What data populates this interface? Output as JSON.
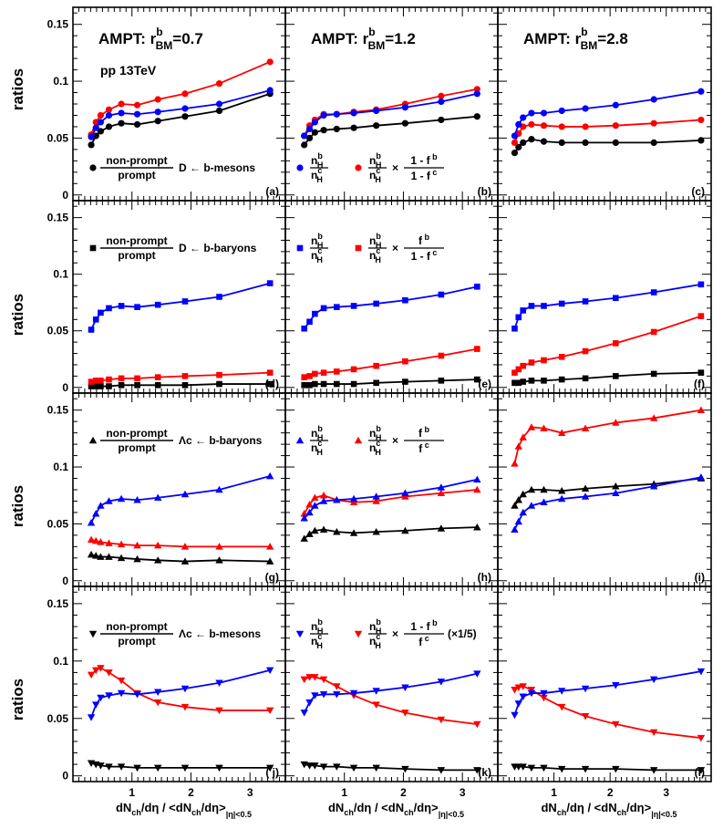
{
  "chart_data": {
    "type": "line",
    "ylabel": "ratios",
    "xlabel": {
      "main": "dN",
      "sub1": "ch",
      "mid": "/dη / <dN",
      "sub2": "ch",
      "end": "/dη>",
      "sub3": "|η|<0.5"
    },
    "ylim": [
      -0.005,
      0.165
    ],
    "yticks": [
      0,
      0.05,
      0.1,
      0.15
    ],
    "ytick_labels": [
      "0",
      "0.05",
      "0.1",
      "0.15"
    ],
    "xtick_labels": [
      "1",
      "2",
      "3"
    ],
    "columns": [
      {
        "xlim": [
          0.0,
          3.6
        ],
        "title": {
          "pre": "AMPT: r",
          "sup": "b",
          "sub": "BM",
          "post": "=0.7"
        }
      },
      {
        "xlim": [
          0.0,
          3.6
        ],
        "title": {
          "pre": "AMPT: r",
          "sup": "b",
          "sub": "BM",
          "post": "=1.2"
        }
      },
      {
        "xlim": [
          0.0,
          3.8
        ],
        "title": {
          "pre": "AMPT: r",
          "sup": "b",
          "sub": "BM",
          "post": "=2.8"
        }
      }
    ],
    "subtitle": "pp 13TeV",
    "legends": [
      {
        "black": {
          "num": "non-prompt",
          "den": "prompt",
          "text": "D ← b-mesons"
        },
        "colored": {
          "blue": {
            "nb": "n",
            "nsup": "b",
            "nsub": "H",
            "db": "n",
            "dsup": "c",
            "dsub": "H"
          },
          "red_factor": {
            "num": "1 - f",
            "numsup": "b",
            "den": "1 - f",
            "densup": "c"
          }
        }
      },
      {
        "black": {
          "num": "non-prompt",
          "den": "prompt",
          "text": "D ← b-baryons"
        },
        "colored": {
          "red_factor": {
            "num": "f",
            "numsup": "b",
            "den": "1 - f",
            "densup": "c"
          }
        }
      },
      {
        "black": {
          "num": "non-prompt",
          "den": "prompt",
          "text": "Λc ← b-baryons"
        },
        "colored": {
          "red_factor": {
            "num": "f",
            "numsup": "b",
            "den": "f",
            "densup": "c"
          }
        }
      },
      {
        "black": {
          "num": "non-prompt",
          "den": "prompt",
          "text": "Λc ← b-mesons"
        },
        "colored": {
          "red_factor": {
            "num": "1 - f",
            "numsup": "b",
            "den": "f",
            "densup": "c"
          },
          "scale_note": "(×1/5)"
        }
      }
    ],
    "panel_labels": [
      "(a)",
      "(b)",
      "(c)",
      "(d)",
      "(e)",
      "(f)",
      "(g)",
      "(h)",
      "(i)",
      "( j)",
      "(k)",
      "(l)"
    ],
    "marker_per_row": [
      "circle",
      "square",
      "triangle-up",
      "triangle-down"
    ],
    "colors": {
      "black": "#000000",
      "blue": "#0000ff",
      "red": "#ff0000"
    },
    "x_values": [
      [
        0.31,
        0.39,
        0.47,
        0.61,
        0.82,
        1.09,
        1.44,
        1.9,
        2.48,
        3.34
      ],
      [
        0.32,
        0.41,
        0.5,
        0.65,
        0.87,
        1.16,
        1.54,
        2.03,
        2.64,
        3.25
      ],
      [
        0.3,
        0.37,
        0.45,
        0.6,
        0.82,
        1.14,
        1.56,
        2.1,
        2.78,
        3.62
      ]
    ],
    "panels": [
      [
        {
          "black": [
            0.044,
            0.052,
            0.056,
            0.06,
            0.063,
            0.062,
            0.065,
            0.069,
            0.074,
            0.089
          ],
          "blue": [
            0.051,
            0.059,
            0.064,
            0.07,
            0.072,
            0.071,
            0.073,
            0.076,
            0.08,
            0.092
          ],
          "red": [
            0.053,
            0.064,
            0.07,
            0.075,
            0.08,
            0.079,
            0.084,
            0.089,
            0.098,
            0.117
          ]
        },
        {
          "black": [
            0.044,
            0.05,
            0.055,
            0.057,
            0.058,
            0.059,
            0.061,
            0.063,
            0.066,
            0.069
          ],
          "blue": [
            0.052,
            0.058,
            0.064,
            0.07,
            0.071,
            0.072,
            0.074,
            0.077,
            0.082,
            0.089
          ],
          "red": [
            0.052,
            0.061,
            0.066,
            0.071,
            0.071,
            0.073,
            0.075,
            0.08,
            0.087,
            0.093
          ]
        },
        {
          "black": [
            0.037,
            0.042,
            0.046,
            0.049,
            0.047,
            0.046,
            0.046,
            0.046,
            0.046,
            0.048
          ],
          "blue": [
            0.052,
            0.062,
            0.068,
            0.072,
            0.072,
            0.074,
            0.076,
            0.079,
            0.084,
            0.091
          ],
          "red": [
            0.046,
            0.054,
            0.06,
            0.062,
            0.061,
            0.06,
            0.06,
            0.061,
            0.063,
            0.066
          ]
        }
      ],
      [
        {
          "black": [
            0.001,
            0.001,
            0.001,
            0.001,
            0.002,
            0.002,
            0.002,
            0.002,
            0.003,
            0.003
          ],
          "blue": [
            0.051,
            0.06,
            0.066,
            0.07,
            0.072,
            0.071,
            0.073,
            0.076,
            0.08,
            0.092
          ],
          "red": [
            0.005,
            0.006,
            0.006,
            0.007,
            0.008,
            0.008,
            0.009,
            0.01,
            0.011,
            0.013
          ]
        },
        {
          "black": [
            0.002,
            0.002,
            0.003,
            0.003,
            0.003,
            0.003,
            0.004,
            0.005,
            0.006,
            0.007
          ],
          "blue": [
            0.052,
            0.058,
            0.065,
            0.07,
            0.071,
            0.072,
            0.074,
            0.077,
            0.082,
            0.089
          ],
          "red": [
            0.009,
            0.01,
            0.012,
            0.013,
            0.014,
            0.016,
            0.019,
            0.023,
            0.028,
            0.034
          ]
        },
        {
          "black": [
            0.004,
            0.004,
            0.005,
            0.006,
            0.006,
            0.007,
            0.008,
            0.01,
            0.012,
            0.013
          ],
          "blue": [
            0.052,
            0.062,
            0.068,
            0.072,
            0.072,
            0.074,
            0.076,
            0.079,
            0.084,
            0.091
          ],
          "red": [
            0.013,
            0.016,
            0.019,
            0.022,
            0.024,
            0.027,
            0.032,
            0.039,
            0.049,
            0.063
          ]
        }
      ],
      [
        {
          "black": [
            0.023,
            0.022,
            0.021,
            0.021,
            0.02,
            0.019,
            0.018,
            0.017,
            0.018,
            0.017
          ],
          "blue": [
            0.051,
            0.059,
            0.066,
            0.07,
            0.072,
            0.071,
            0.073,
            0.076,
            0.08,
            0.092
          ],
          "red": [
            0.036,
            0.035,
            0.034,
            0.033,
            0.032,
            0.031,
            0.031,
            0.03,
            0.03,
            0.03
          ]
        },
        {
          "black": [
            0.037,
            0.041,
            0.044,
            0.045,
            0.043,
            0.042,
            0.043,
            0.044,
            0.046,
            0.047
          ],
          "blue": [
            0.055,
            0.06,
            0.066,
            0.07,
            0.071,
            0.072,
            0.074,
            0.077,
            0.082,
            0.089
          ],
          "red": [
            0.059,
            0.067,
            0.073,
            0.075,
            0.071,
            0.069,
            0.07,
            0.074,
            0.077,
            0.08
          ]
        },
        {
          "black": [
            0.066,
            0.071,
            0.076,
            0.08,
            0.08,
            0.079,
            0.081,
            0.083,
            0.085,
            0.09
          ],
          "blue": [
            0.045,
            0.052,
            0.06,
            0.066,
            0.069,
            0.072,
            0.074,
            0.077,
            0.083,
            0.091
          ],
          "red": [
            0.103,
            0.118,
            0.126,
            0.135,
            0.134,
            0.13,
            0.134,
            0.139,
            0.143,
            0.15
          ]
        }
      ],
      [
        {
          "black": [
            0.011,
            0.01,
            0.009,
            0.008,
            0.008,
            0.007,
            0.007,
            0.007,
            0.007,
            0.007
          ],
          "blue": [
            0.051,
            0.062,
            0.068,
            0.07,
            0.072,
            0.071,
            0.073,
            0.076,
            0.081,
            0.092
          ],
          "red": [
            0.088,
            0.092,
            0.094,
            0.09,
            0.083,
            0.072,
            0.064,
            0.06,
            0.057,
            0.057
          ]
        },
        {
          "black": [
            0.01,
            0.009,
            0.009,
            0.008,
            0.008,
            0.007,
            0.007,
            0.006,
            0.005,
            0.005
          ],
          "blue": [
            0.055,
            0.064,
            0.07,
            0.071,
            0.071,
            0.072,
            0.074,
            0.077,
            0.082,
            0.089
          ],
          "red": [
            0.084,
            0.086,
            0.086,
            0.084,
            0.078,
            0.07,
            0.062,
            0.055,
            0.049,
            0.045
          ]
        },
        {
          "black": [
            0.008,
            0.008,
            0.008,
            0.007,
            0.007,
            0.006,
            0.006,
            0.006,
            0.005,
            0.005
          ],
          "blue": [
            0.053,
            0.063,
            0.069,
            0.072,
            0.072,
            0.074,
            0.076,
            0.079,
            0.084,
            0.091
          ],
          "red": [
            0.075,
            0.077,
            0.078,
            0.075,
            0.068,
            0.06,
            0.052,
            0.045,
            0.038,
            0.033
          ]
        }
      ]
    ]
  }
}
